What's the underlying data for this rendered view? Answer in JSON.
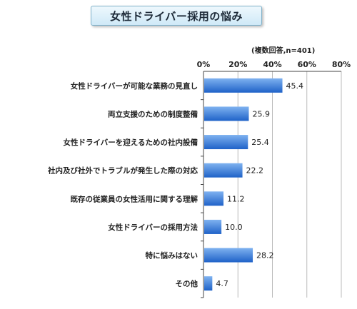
{
  "title": "女性ドライバー採用の悩み",
  "note": "(複数回答,n=401)",
  "colors": {
    "bar_top": "#7fb2f0",
    "bar_bottom": "#1f62c8",
    "axis": "#444444",
    "grid": "#bbbbbb"
  },
  "chart_data": {
    "type": "bar",
    "orientation": "horizontal",
    "title": "女性ドライバー採用の悩み",
    "categories": [
      "女性ドライバーが可能な業務の見直し",
      "両立支援のための制度整備",
      "女性ドライバーを迎えるための社内設備",
      "社内及び社外でトラブルが発生した際の対応",
      "既存の従業員の女性活用に関する理解",
      "女性ドライバーの採用方法",
      "特に悩みはない",
      "その他"
    ],
    "values": [
      45.4,
      25.9,
      25.4,
      22.2,
      11.2,
      10.0,
      28.2,
      4.7
    ],
    "value_labels": [
      "45.4",
      "25.9",
      "25.4",
      "22.2",
      "11.2",
      "10.0",
      "28.2",
      "4.7"
    ],
    "xlim": [
      0,
      80
    ],
    "xticks": [
      "0%",
      "20%",
      "40%",
      "60%",
      "80%"
    ],
    "tick_values": [
      0,
      20,
      40,
      60,
      80
    ],
    "grid": true,
    "legend": "none"
  }
}
